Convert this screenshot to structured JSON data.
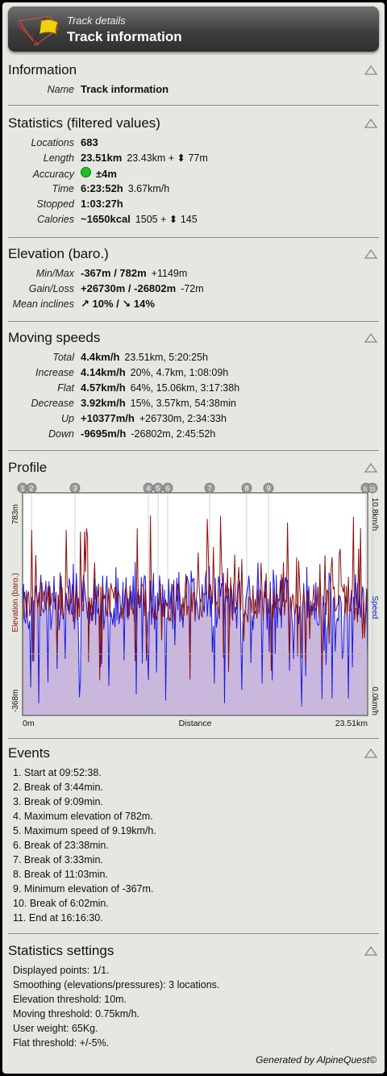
{
  "header": {
    "subtitle": "Track details",
    "title": "Track information"
  },
  "information": {
    "title": "Information",
    "name_label": "Name",
    "name_value": "Track information"
  },
  "statistics": {
    "title": "Statistics (filtered values)",
    "rows": [
      {
        "k": "Locations",
        "v": "683",
        "x": ""
      },
      {
        "k": "Length",
        "v": "23.51km",
        "x": "23.43km + ⬍ 77m"
      },
      {
        "k": "Accuracy",
        "v": "±4m",
        "x": ""
      },
      {
        "k": "Time",
        "v": "6:23:52h",
        "x": "3.67km/h"
      },
      {
        "k": "Stopped",
        "v": "1:03:27h",
        "x": ""
      },
      {
        "k": "Calories",
        "v": "~1650kcal",
        "x": "1505 + ⬍ 145"
      }
    ]
  },
  "elevation": {
    "title": "Elevation (baro.)",
    "rows": [
      {
        "k": "Min/Max",
        "v": "-367m / 782m",
        "x": "+1149m"
      },
      {
        "k": "Gain/Loss",
        "v": "+26730m / -26802m",
        "x": "-72m"
      },
      {
        "k": "Mean inclines",
        "v": "↗ 10% / ↘ 14%",
        "x": ""
      }
    ]
  },
  "speeds": {
    "title": "Moving speeds",
    "rows": [
      {
        "k": "Total",
        "v": "4.4km/h",
        "x": "23.51km, 5:20:25h"
      },
      {
        "k": "Increase",
        "v": "4.14km/h",
        "x": "20%, 4.7km, 1:08:09h"
      },
      {
        "k": "Flat",
        "v": "4.57km/h",
        "x": "64%, 15.06km, 3:17:38h"
      },
      {
        "k": "Decrease",
        "v": "3.92km/h",
        "x": "15%, 3.57km, 54:38min"
      },
      {
        "k": "Up",
        "v": "+10377m/h",
        "x": "+26730m, 2:34:33h"
      },
      {
        "k": "Down",
        "v": "-9695m/h",
        "x": "-26802m, 2:45:52h"
      }
    ]
  },
  "profile": {
    "title": "Profile",
    "y_left_top": "783m",
    "y_left_bottom": "-368m",
    "y_left_label": "Elevation (baro.)",
    "y_right_top": "10.8km/h",
    "y_right_bottom": "0.0km/h",
    "y_right_label": "Speed",
    "x_left": "0m",
    "x_center": "Distance",
    "x_right": "23.51km",
    "markers": [
      "1",
      "2",
      "3",
      "4",
      "5",
      "6",
      "7",
      "8",
      "9",
      "10",
      "11"
    ],
    "colors": {
      "elevation": "#8b1010",
      "speed": "#1a1adc",
      "fill": "#c8b6dc",
      "plot_bg": "#ffffff"
    }
  },
  "events": {
    "title": "Events",
    "items": [
      "1. Start at 09:52:38.",
      "2. Break of 3:44min.",
      "3. Break of 9:09min.",
      "4. Maximum elevation of 782m.",
      "5. Maximum speed of 9.19km/h.",
      "6. Break of 23:38min.",
      "7. Break of 3:33min.",
      "8. Break of 11:03min.",
      "9. Minimum elevation of -367m.",
      "10. Break of 6:02min.",
      "11. End at 16:16:30."
    ]
  },
  "settings": {
    "title": "Statistics settings",
    "items": [
      "Displayed points: 1/1.",
      "Smoothing (elevations/pressures): 3 locations.",
      "Elevation threshold: 10m.",
      "Moving threshold: 0.75km/h.",
      "User weight: 65Kg.",
      "Flat threshold: +/-5%."
    ]
  },
  "footer": "Generated by AlpineQuest©"
}
